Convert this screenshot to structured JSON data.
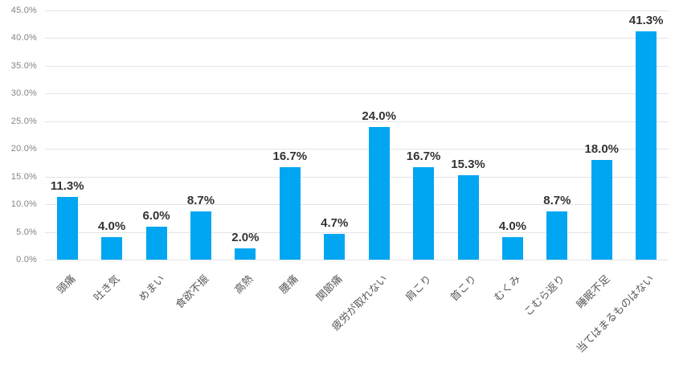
{
  "chart_data": {
    "type": "bar",
    "title": "",
    "xlabel": "",
    "ylabel": "",
    "categories": [
      "頭痛",
      "吐き気",
      "めまい",
      "食欲不振",
      "高熱",
      "腰痛",
      "関節痛",
      "疲労が取れない",
      "肩こり",
      "首こり",
      "むくみ",
      "こむら返り",
      "睡眠不足",
      "当てはまるものはない"
    ],
    "values": [
      11.3,
      4.0,
      6.0,
      8.7,
      2.0,
      16.7,
      4.7,
      24.0,
      16.7,
      15.3,
      4.0,
      8.7,
      18.0,
      41.3
    ],
    "value_labels": [
      "11.3%",
      "4.0%",
      "6.0%",
      "8.7%",
      "2.0%",
      "16.7%",
      "4.7%",
      "24.0%",
      "16.7%",
      "15.3%",
      "4.0%",
      "8.7%",
      "18.0%",
      "41.3%"
    ],
    "ylim": [
      0,
      45
    ],
    "ytick_step": 5,
    "ytick_labels": [
      "0.0%",
      "5.0%",
      "10.0%",
      "15.0%",
      "20.0%",
      "25.0%",
      "30.0%",
      "35.0%",
      "40.0%",
      "45.0%"
    ],
    "grid": true,
    "legend_position": "none",
    "colors": {
      "bar": "#00a6f2",
      "value_label": "#333333",
      "axis_label": "#848484",
      "category_label": "#595959",
      "gridline": "#e4e4e4",
      "background": "#ffffff"
    }
  }
}
